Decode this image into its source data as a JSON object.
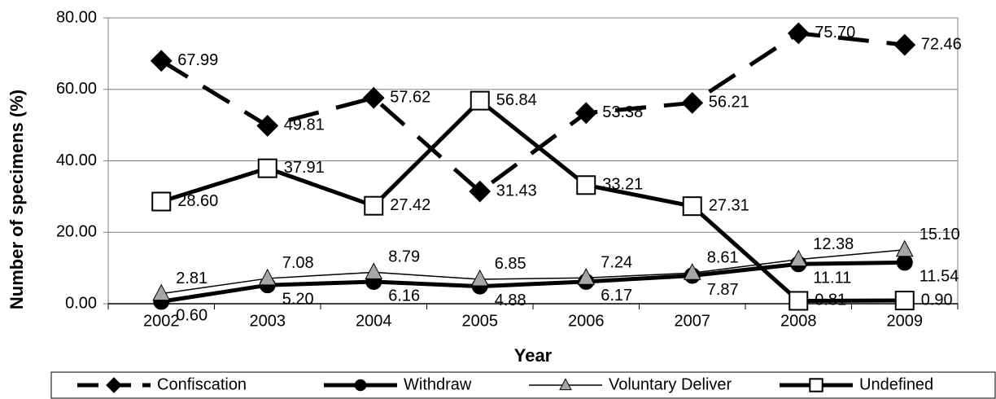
{
  "chart_data": {
    "type": "line",
    "x_label": "Year",
    "y_label": "Number of specimens (%)",
    "categories": [
      "2002",
      "2003",
      "2004",
      "2005",
      "2006",
      "2007",
      "2008",
      "2009"
    ],
    "ylim": [
      0,
      80
    ],
    "yticks": [
      {
        "value": 0,
        "label": "0.00"
      },
      {
        "value": 20,
        "label": "20.00"
      },
      {
        "value": 40,
        "label": "40.00"
      },
      {
        "value": 60,
        "label": "60.00"
      },
      {
        "value": 80,
        "label": "80.00"
      }
    ],
    "grid": true,
    "legend": "bottom",
    "series": [
      {
        "name": "Confiscation",
        "color": "#000000",
        "marker": "diamond",
        "marker_fill": "#000000",
        "line_width": 5,
        "dashed": true,
        "values": [
          67.99,
          49.81,
          57.62,
          31.43,
          53.38,
          56.21,
          75.7,
          72.46
        ],
        "value_labels": [
          "67.99",
          "49.81",
          "57.62",
          "31.43",
          "53.38",
          "56.21",
          "75.70",
          "72.46"
        ]
      },
      {
        "name": "Withdraw",
        "color": "#000000",
        "marker": "circle",
        "marker_fill": "#000000",
        "line_width": 5,
        "dashed": false,
        "values": [
          0.6,
          5.2,
          6.16,
          4.88,
          6.17,
          7.87,
          11.11,
          11.54
        ],
        "value_labels": [
          "0.60",
          "5.20",
          "6.16",
          "4.88",
          "6.17",
          "7.87",
          "11.11",
          "11.54"
        ]
      },
      {
        "name": "Voluntary Deliver",
        "color": "#000000",
        "marker": "triangle",
        "marker_fill": "#a6a6a6",
        "line_width": 1.5,
        "dashed": false,
        "values": [
          2.81,
          7.08,
          8.79,
          6.85,
          7.24,
          8.61,
          12.38,
          15.1
        ],
        "value_labels": [
          "2.81",
          "7.08",
          "8.79",
          "6.85",
          "7.24",
          "8.61",
          "12.38",
          "15.10"
        ]
      },
      {
        "name": "Undefined",
        "color": "#000000",
        "marker": "square",
        "marker_fill": "#ffffff",
        "line_width": 5,
        "dashed": false,
        "values": [
          28.6,
          37.91,
          27.42,
          56.84,
          33.21,
          27.31,
          0.81,
          0.9
        ],
        "value_labels": [
          "28.60",
          "37.91",
          "27.42",
          "56.84",
          "33.21",
          "27.31",
          "0.81",
          "0.90"
        ]
      }
    ]
  }
}
